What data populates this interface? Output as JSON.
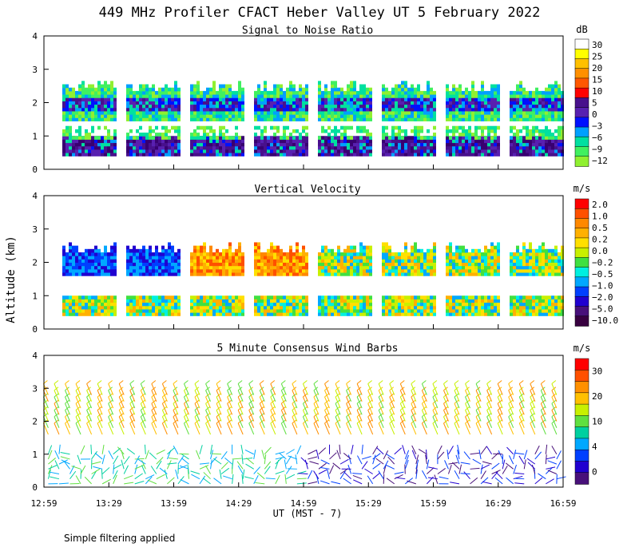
{
  "figure_title": "449 MHz Profiler CFACT Heber Valley UT  5 February 2022",
  "y_axis_label": "Altitude (km)",
  "x_axis_label": "UT  (MST - 7)",
  "footnote": "Simple filtering applied",
  "chart_data": [
    {
      "type": "heatmap",
      "title": "Signal to Noise Ratio",
      "colorbar_unit": "dB",
      "colorbar_labels": [
        "30",
        "25",
        "20",
        "15",
        "10",
        "5",
        "0",
        "−3",
        "−6",
        "−9",
        "−12"
      ],
      "colorbar_colors": [
        "#ffffff",
        "#ffff00",
        "#ffc000",
        "#ff9000",
        "#ff5800",
        "#ff0000",
        "#48108c",
        "#5820b0",
        "#0010ff",
        "#00a0ff",
        "#00e0a0",
        "#40f060",
        "#90f030"
      ],
      "x_ticks": [
        "12:59",
        "13:29",
        "13:59",
        "14:29",
        "14:59",
        "15:29",
        "15:59",
        "16:29",
        "16:59"
      ],
      "y_ticks": [
        "0",
        "1",
        "2",
        "3",
        "4"
      ],
      "xlim_minutes": [
        0,
        240
      ],
      "ylim_km": [
        0,
        4
      ]
    },
    {
      "type": "heatmap",
      "title": "Vertical Velocity",
      "colorbar_unit": "m/s",
      "colorbar_labels": [
        "2.0",
        "1.0",
        "0.5",
        "0.2",
        "0.0",
        "−0.2",
        "−0.5",
        "−1.0",
        "−2.0",
        "−5.0",
        "−10.0"
      ],
      "colorbar_colors": [
        "#ff0000",
        "#ff5000",
        "#ff8800",
        "#ffb000",
        "#ffe000",
        "#c8f000",
        "#40e040",
        "#00f0e0",
        "#00a8ff",
        "#0040ff",
        "#2000d0",
        "#48107a",
        "#380040"
      ],
      "x_ticks": [
        "12:59",
        "13:29",
        "13:59",
        "14:29",
        "14:59",
        "15:29",
        "15:59",
        "16:29",
        "16:59"
      ],
      "y_ticks": [
        "0",
        "1",
        "2",
        "3",
        "4"
      ],
      "xlim_minutes": [
        0,
        240
      ],
      "ylim_km": [
        0,
        4
      ]
    },
    {
      "type": "scatter",
      "title": "5 Minute Consensus Wind Barbs",
      "colorbar_unit": "m/s",
      "colorbar_labels": [
        "30",
        "20",
        "10",
        "4",
        "0"
      ],
      "colorbar_colors": [
        "#ff0000",
        "#ff5000",
        "#ff9000",
        "#ffc000",
        "#c8f000",
        "#60e040",
        "#00d0a0",
        "#00a8ff",
        "#0040ff",
        "#2000d0",
        "#48107a"
      ],
      "x_ticks": [
        "12:59",
        "13:29",
        "13:59",
        "14:29",
        "14:59",
        "15:29",
        "15:59",
        "16:29",
        "16:59"
      ],
      "y_ticks": [
        "0",
        "1",
        "2",
        "3",
        "4"
      ],
      "xlim_minutes": [
        0,
        240
      ],
      "ylim_km": [
        0,
        4
      ],
      "upper_layer_km": [
        1.6,
        3.0
      ],
      "lower_layer_km": [
        0.1,
        1.0
      ]
    }
  ]
}
